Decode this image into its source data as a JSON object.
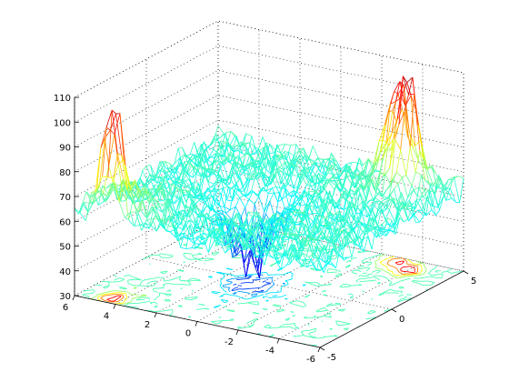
{
  "chart_data": {
    "type": "surface",
    "style": "meshz",
    "contour_projection": true,
    "colormap": "jet",
    "title": "",
    "xlabel": "",
    "ylabel": "",
    "zlabel": "",
    "grid": true,
    "x_range": [
      -6,
      6
    ],
    "y_range": [
      -5,
      5
    ],
    "z_range": [
      30,
      110
    ],
    "x_ticks": [
      6,
      4,
      2,
      0,
      -2,
      -4,
      -6
    ],
    "y_ticks": [
      5,
      0,
      -5
    ],
    "z_ticks": [
      30,
      40,
      50,
      60,
      70,
      80,
      90,
      100,
      110
    ],
    "x_tick_labels": [
      "6",
      "4",
      "2",
      "0",
      "-2",
      "-4",
      "-6"
    ],
    "y_tick_labels": [
      "5",
      "0",
      "-5"
    ],
    "z_tick_labels": [
      "30",
      "40",
      "50",
      "60",
      "70",
      "80",
      "90",
      "100",
      "110"
    ],
    "features": {
      "baseline_level": 63,
      "peaks": [
        {
          "x": 4.5,
          "y": -4.5,
          "z": 108
        },
        {
          "x": -4.0,
          "y": 4.0,
          "z": 108
        },
        {
          "x": -3.0,
          "y": 4.5,
          "z": 103
        }
      ],
      "trough": {
        "x": 0.5,
        "y": -0.5,
        "z": 33
      }
    },
    "colors": {
      "low": "#0000ff",
      "mid": "#00ffff",
      "high": "#ff0000"
    }
  }
}
